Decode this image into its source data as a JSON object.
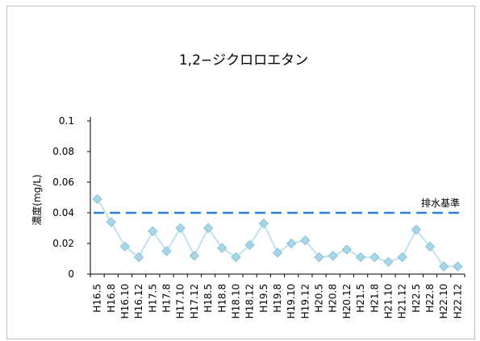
{
  "chart_data": {
    "type": "line",
    "title": "1,2−ジクロロエタン",
    "xlabel": "",
    "ylabel": "濃度(mg/L)",
    "ylim": [
      0,
      0.1
    ],
    "yticks": [
      "0",
      "0.02",
      "0.04",
      "0.06",
      "0.08",
      "0.1"
    ],
    "ytick_values": [
      0,
      0.02,
      0.04,
      0.06,
      0.08,
      0.1
    ],
    "grid": false,
    "categories": [
      "H16.5",
      "H16.8",
      "H16.10",
      "H16.12",
      "H17.5",
      "H17.8",
      "H17.10",
      "H17.12",
      "H18.5",
      "H18.8",
      "H18.10",
      "H18.12",
      "H19.5",
      "H19.8",
      "H19.10",
      "H19.12",
      "H20.5",
      "H20.8",
      "H20.12",
      "H21.5",
      "H21.8",
      "H21.10",
      "H21.12",
      "H22.5",
      "H22.8",
      "H22.10",
      "H22.12"
    ],
    "series": [
      {
        "values": [
          0.049,
          0.034,
          0.018,
          0.011,
          0.028,
          0.015,
          0.03,
          0.012,
          0.03,
          0.017,
          0.011,
          0.019,
          0.033,
          0.014,
          0.02,
          0.022,
          0.011,
          0.012,
          0.016,
          0.011,
          0.011,
          0.008,
          0.011,
          0.029,
          0.018,
          0.005,
          0.005
        ],
        "line_color": "#bfe3ee",
        "marker_fill": "#a9d6e6",
        "marker_stroke": "#87c3d8",
        "marker": "diamond"
      }
    ],
    "reference_line": {
      "label": "排水基準",
      "value": 0.04,
      "color": "#2b7de9",
      "style": "dashed"
    }
  }
}
